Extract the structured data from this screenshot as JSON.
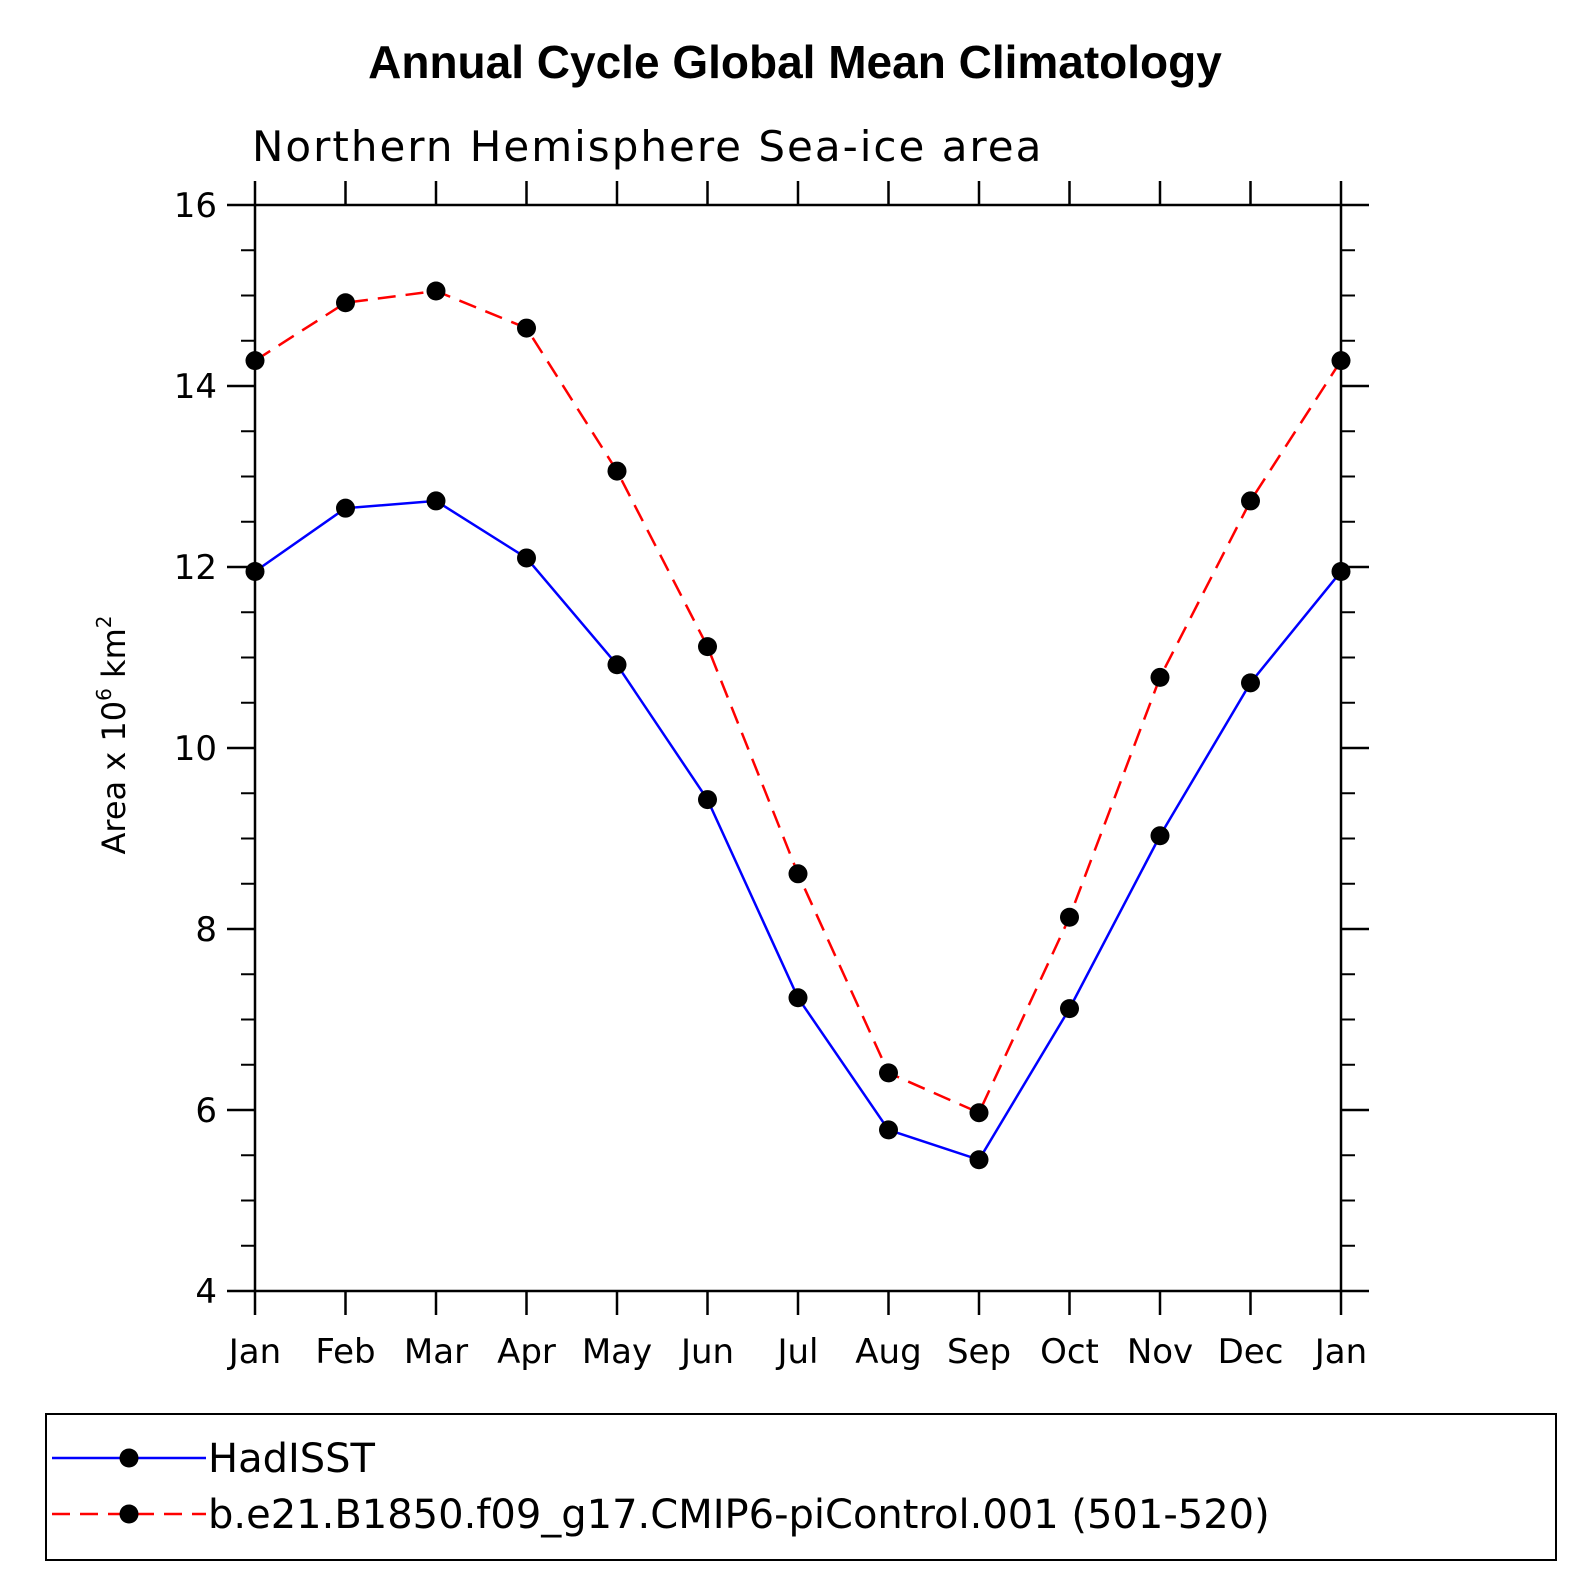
{
  "chart_data": {
    "type": "line",
    "title": "Annual Cycle Global Mean Climatology",
    "subtitle": "Northern Hemisphere Sea-ice area",
    "ylabel": "Area x 10",
    "ylabel_exp": "6",
    "ylabel_unit": " km",
    "ylabel_unit_exp": "2",
    "categories": [
      "Jan",
      "Feb",
      "Mar",
      "Apr",
      "May",
      "Jun",
      "Jul",
      "Aug",
      "Sep",
      "Oct",
      "Nov",
      "Dec",
      "Jan"
    ],
    "ylim": [
      4,
      16
    ],
    "yticks": [
      4,
      6,
      8,
      10,
      12,
      14,
      16
    ],
    "yticks_minor_step": 0.5,
    "series": [
      {
        "name": "HadISST",
        "color": "#0000ff",
        "dash": "solid",
        "values": [
          11.95,
          12.65,
          12.73,
          12.1,
          10.92,
          9.43,
          7.24,
          5.78,
          5.45,
          7.12,
          9.03,
          10.72,
          11.95
        ]
      },
      {
        "name": "b.e21.B1850.f09_g17.CMIP6-piControl.001 (501-520)",
        "color": "#ff0000",
        "dash": "dashed",
        "values": [
          14.28,
          14.92,
          15.05,
          14.64,
          13.06,
          11.12,
          8.61,
          6.41,
          5.97,
          8.13,
          10.78,
          12.73,
          14.28
        ]
      }
    ],
    "legend_position": "bottom"
  }
}
